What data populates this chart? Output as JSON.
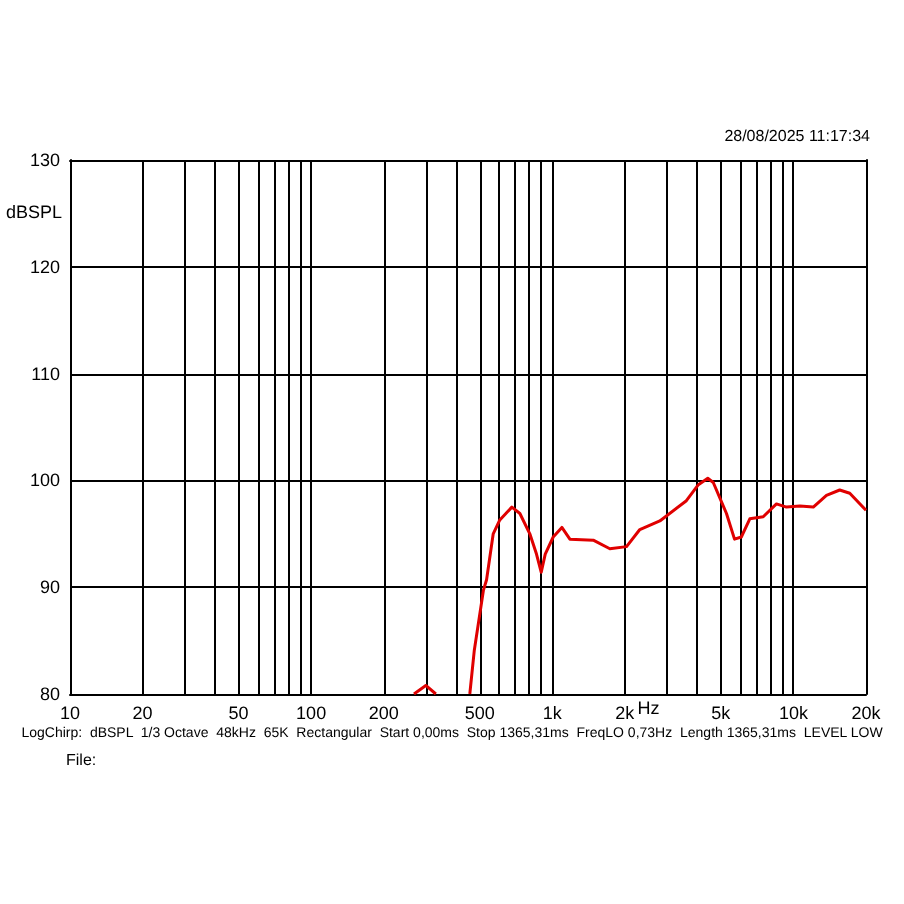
{
  "chart_data": {
    "type": "line",
    "xlabel": "Hz",
    "ylabel": "dBSPL",
    "annotations": [
      "28/08/2025 11:17:34",
      "LogChirp:  dBSPL  1/3 Octave  48kHz  65K  Rectangular  Start 0,00ms  Stop 1365,31ms  FreqLO 0,73Hz  Length 1365,31ms  LEVEL LOW",
      "File:"
    ],
    "log": "x",
    "grid": true,
    "marker": "none",
    "line_style": "solid",
    "xlim": [
      10,
      20000
    ],
    "ylim": [
      80,
      130
    ],
    "xticks": [
      10,
      {
        "value": 20,
        "label": "20"
      },
      {
        "value": 30,
        "label": null
      },
      {
        "value": 40,
        "label": null
      },
      {
        "value": 50,
        "label": "50"
      },
      {
        "value": 60,
        "label": null
      },
      {
        "value": 70,
        "label": null
      },
      {
        "value": 80,
        "label": null
      },
      {
        "value": 90,
        "label": null
      },
      100,
      {
        "value": 200,
        "label": "200"
      },
      {
        "value": 300,
        "label": null
      },
      {
        "value": 400,
        "label": null
      },
      {
        "value": 500,
        "label": "500"
      },
      {
        "value": 600,
        "label": null
      },
      {
        "value": 700,
        "label": null
      },
      {
        "value": 800,
        "label": null
      },
      {
        "value": 900,
        "label": null
      },
      {
        "value": 1000,
        "label": "1k"
      },
      {
        "value": 2000,
        "label": "2k"
      },
      {
        "value": 3000,
        "label": null
      },
      {
        "value": 4000,
        "label": null
      },
      {
        "value": 5000,
        "label": "5k"
      },
      {
        "value": 6000,
        "label": null
      },
      {
        "value": 7000,
        "label": null
      },
      {
        "value": 8000,
        "label": null
      },
      {
        "value": 9000,
        "label": null
      },
      {
        "value": 10000,
        "label": "10k"
      },
      {
        "value": 20000,
        "label": "20k"
      }
    ],
    "yticks": [
      80,
      90,
      100,
      110,
      120,
      130
    ],
    "series": [
      {
        "color": "#dd0000",
        "x": [
          267,
          299,
          329
        ],
        "values": [
          80,
          80.8,
          80
        ]
      },
      {
        "color": "#e00000",
        "x": [
          455,
          475,
          518,
          534,
          569,
          606,
          680,
          734,
          807,
          860,
          900,
          935,
          1009,
          1096,
          1183,
          1479,
          1733,
          2032,
          2307,
          2793,
          3599,
          4036,
          4415,
          4652,
          5277,
          5699,
          6081,
          6595,
          7496,
          8505,
          9356,
          10640,
          12090,
          13710,
          15560,
          17130,
          20000
        ],
        "values": [
          80,
          84.1,
          89.7,
          90.7,
          95.0,
          96.3,
          97.5,
          96.9,
          95.0,
          93.1,
          91.4,
          93.1,
          94.7,
          95.6,
          94.5,
          94.4,
          93.6,
          93.8,
          95.4,
          96.2,
          98.1,
          99.6,
          100.2,
          99.8,
          96.9,
          94.5,
          94.7,
          96.4,
          96.6,
          97.8,
          97.5,
          97.6,
          97.5,
          98.6,
          99.1,
          98.8,
          97.2
        ]
      }
    ]
  }
}
